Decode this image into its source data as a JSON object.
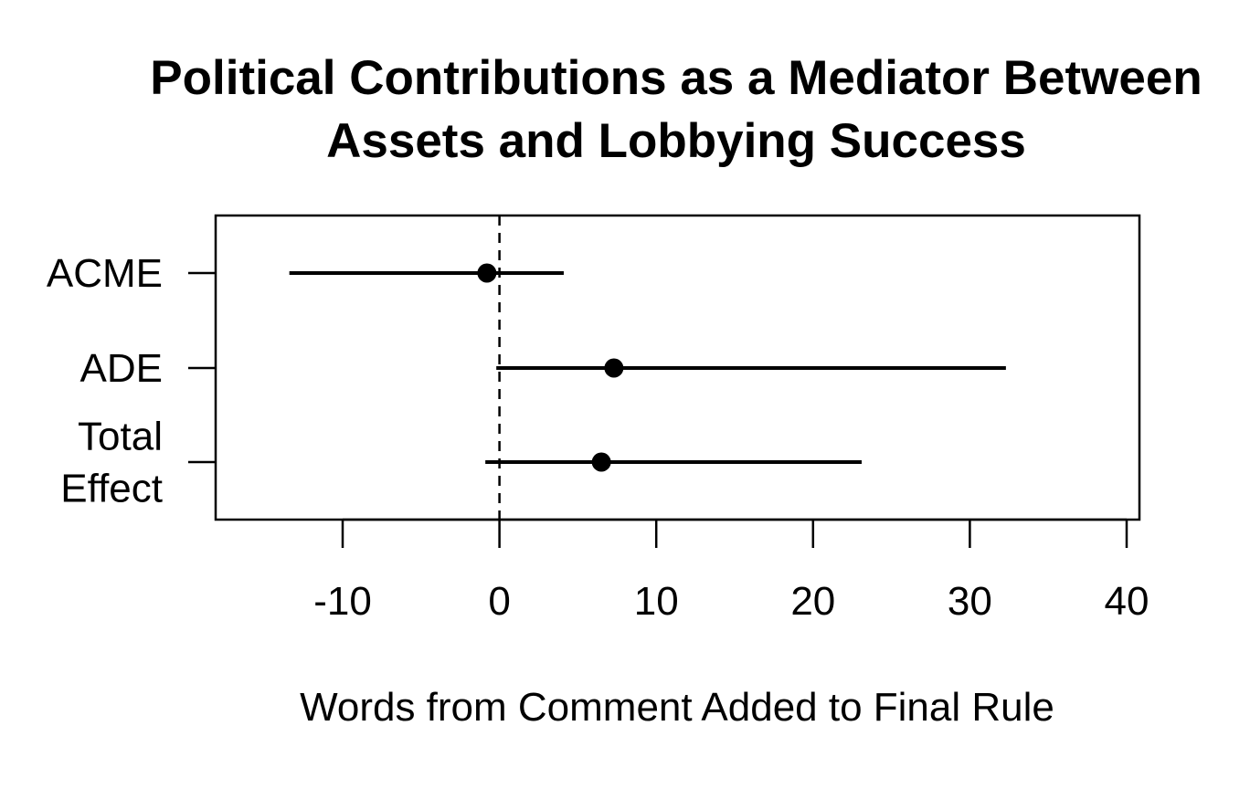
{
  "chart_data": {
    "type": "dot-interval",
    "title_lines": [
      "Political Contributions as a Mediator Between",
      "Assets and Lobbying Success"
    ],
    "xlabel": "Words from Comment Added to Final Rule",
    "ylabel": "",
    "xlim": [
      -18,
      41
    ],
    "xticks": [
      -10,
      0,
      10,
      20,
      30,
      40
    ],
    "xtick_labels": [
      "-10",
      "0",
      "10",
      "20",
      "30",
      "40"
    ],
    "reference_line": 0,
    "grid": false,
    "estimates": [
      {
        "label_lines": [
          "ACME"
        ],
        "estimate": -0.8,
        "lower": -13.4,
        "upper": 4.1
      },
      {
        "label_lines": [
          "ADE"
        ],
        "estimate": 7.3,
        "lower": -0.2,
        "upper": 32.3
      },
      {
        "label_lines": [
          "Total",
          "Effect"
        ],
        "estimate": 6.5,
        "lower": -0.9,
        "upper": 23.1
      }
    ],
    "colors": {
      "ink": "#000000",
      "background": "#ffffff"
    }
  }
}
